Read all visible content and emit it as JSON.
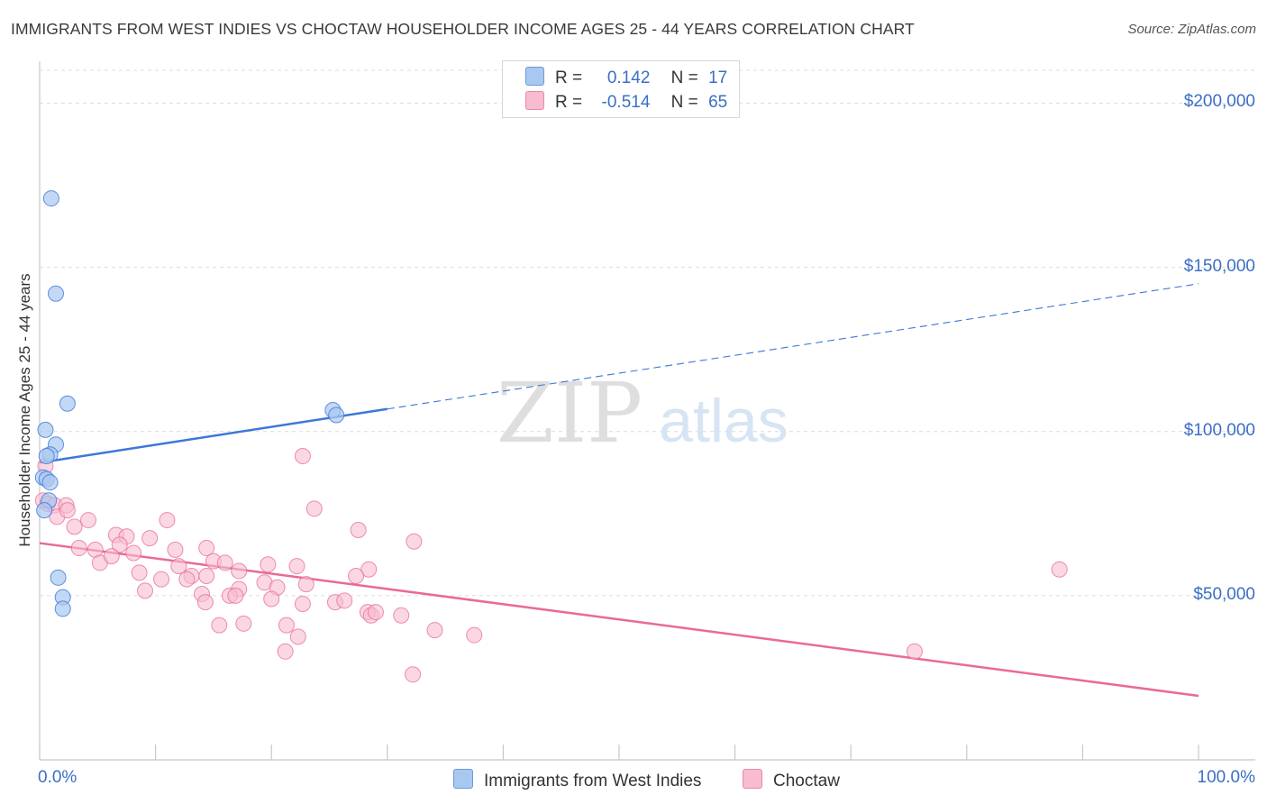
{
  "title": "IMMIGRANTS FROM WEST INDIES VS CHOCTAW HOUSEHOLDER INCOME AGES 25 - 44 YEARS CORRELATION CHART",
  "source": "Source: ZipAtlas.com",
  "watermark": {
    "zip": "ZIP",
    "atlas": "atlas"
  },
  "legend": {
    "r_label": "R =",
    "n_label": "N =",
    "series": [
      {
        "r": "0.142",
        "n": "17"
      },
      {
        "r": "-0.514",
        "n": "65"
      }
    ]
  },
  "bottom_legend": [
    "Immigrants from West Indies",
    "Choctaw"
  ],
  "colors": {
    "blue": "#3b78d8",
    "blue_fill": "#a9c8f0",
    "pink": "#e86a98",
    "pink_fill": "#f7bcd0",
    "axis_text": "#3b6fc4"
  },
  "chart_data": {
    "type": "scatter",
    "title": "IMMIGRANTS FROM WEST INDIES VS CHOCTAW HOUSEHOLDER INCOME AGES 25 - 44 YEARS CORRELATION CHART",
    "xlabel": "",
    "ylabel": "Householder Income Ages 25 - 44 years",
    "xlim": [
      0,
      100
    ],
    "ylim": [
      0,
      210000
    ],
    "x_tick_labels": [
      "0.0%",
      "100.0%"
    ],
    "y_ticks": [
      50000,
      100000,
      150000,
      200000
    ],
    "y_tick_labels": [
      "$50,000",
      "$100,000",
      "$150,000",
      "$200,000"
    ],
    "grid": true,
    "series": [
      {
        "name": "Immigrants from West Indies",
        "r": 0.142,
        "n": 17,
        "points": [
          [
            1.0,
            171000
          ],
          [
            1.4,
            142000
          ],
          [
            2.4,
            108500
          ],
          [
            0.5,
            100500
          ],
          [
            1.4,
            96000
          ],
          [
            0.9,
            93000
          ],
          [
            0.6,
            92500
          ],
          [
            0.3,
            86000
          ],
          [
            0.6,
            85500
          ],
          [
            0.9,
            84500
          ],
          [
            0.8,
            79000
          ],
          [
            0.4,
            76000
          ],
          [
            1.6,
            55500
          ],
          [
            2.0,
            49500
          ],
          [
            2.0,
            46000
          ],
          [
            25.3,
            106500
          ],
          [
            25.6,
            105000
          ]
        ],
        "trend": {
          "x": [
            0,
            100
          ],
          "y": [
            90500,
            145000
          ],
          "solid_until": 30
        }
      },
      {
        "name": "Choctaw",
        "r": -0.514,
        "n": 65,
        "points": [
          [
            0.5,
            89500
          ],
          [
            0.3,
            79000
          ],
          [
            0.7,
            78000
          ],
          [
            1.3,
            77500
          ],
          [
            2.3,
            77500
          ],
          [
            1.5,
            74000
          ],
          [
            2.4,
            76000
          ],
          [
            3.0,
            71000
          ],
          [
            4.2,
            73000
          ],
          [
            6.6,
            68500
          ],
          [
            7.5,
            68000
          ],
          [
            11.0,
            73000
          ],
          [
            9.5,
            67500
          ],
          [
            6.9,
            65500
          ],
          [
            3.4,
            64500
          ],
          [
            4.8,
            64000
          ],
          [
            8.1,
            63000
          ],
          [
            11.7,
            64000
          ],
          [
            14.4,
            64500
          ],
          [
            5.2,
            60000
          ],
          [
            12.0,
            59000
          ],
          [
            15.0,
            60500
          ],
          [
            16.0,
            60000
          ],
          [
            17.2,
            57500
          ],
          [
            19.7,
            59500
          ],
          [
            22.2,
            59000
          ],
          [
            8.6,
            57000
          ],
          [
            13.1,
            56000
          ],
          [
            14.4,
            56000
          ],
          [
            10.5,
            55000
          ],
          [
            12.7,
            55000
          ],
          [
            19.4,
            54000
          ],
          [
            20.5,
            52500
          ],
          [
            23.0,
            53500
          ],
          [
            17.2,
            52000
          ],
          [
            9.1,
            51500
          ],
          [
            14.0,
            50500
          ],
          [
            16.4,
            50000
          ],
          [
            16.9,
            50000
          ],
          [
            20.0,
            49000
          ],
          [
            22.7,
            47500
          ],
          [
            25.5,
            48000
          ],
          [
            26.3,
            48500
          ],
          [
            28.4,
            58000
          ],
          [
            27.3,
            56000
          ],
          [
            28.3,
            45000
          ],
          [
            28.6,
            44000
          ],
          [
            29.0,
            45000
          ],
          [
            14.3,
            48000
          ],
          [
            21.3,
            41000
          ],
          [
            17.6,
            41500
          ],
          [
            15.5,
            41000
          ],
          [
            22.3,
            37500
          ],
          [
            31.2,
            44000
          ],
          [
            34.1,
            39500
          ],
          [
            37.5,
            38000
          ],
          [
            21.2,
            33000
          ],
          [
            32.2,
            26000
          ],
          [
            22.7,
            92500
          ],
          [
            23.7,
            76500
          ],
          [
            27.5,
            70000
          ],
          [
            32.3,
            66500
          ],
          [
            88.0,
            58000
          ],
          [
            75.5,
            33000
          ],
          [
            6.2,
            62000
          ]
        ],
        "trend": {
          "x": [
            0,
            100
          ],
          "y": [
            66000,
            19500
          ]
        }
      }
    ]
  }
}
